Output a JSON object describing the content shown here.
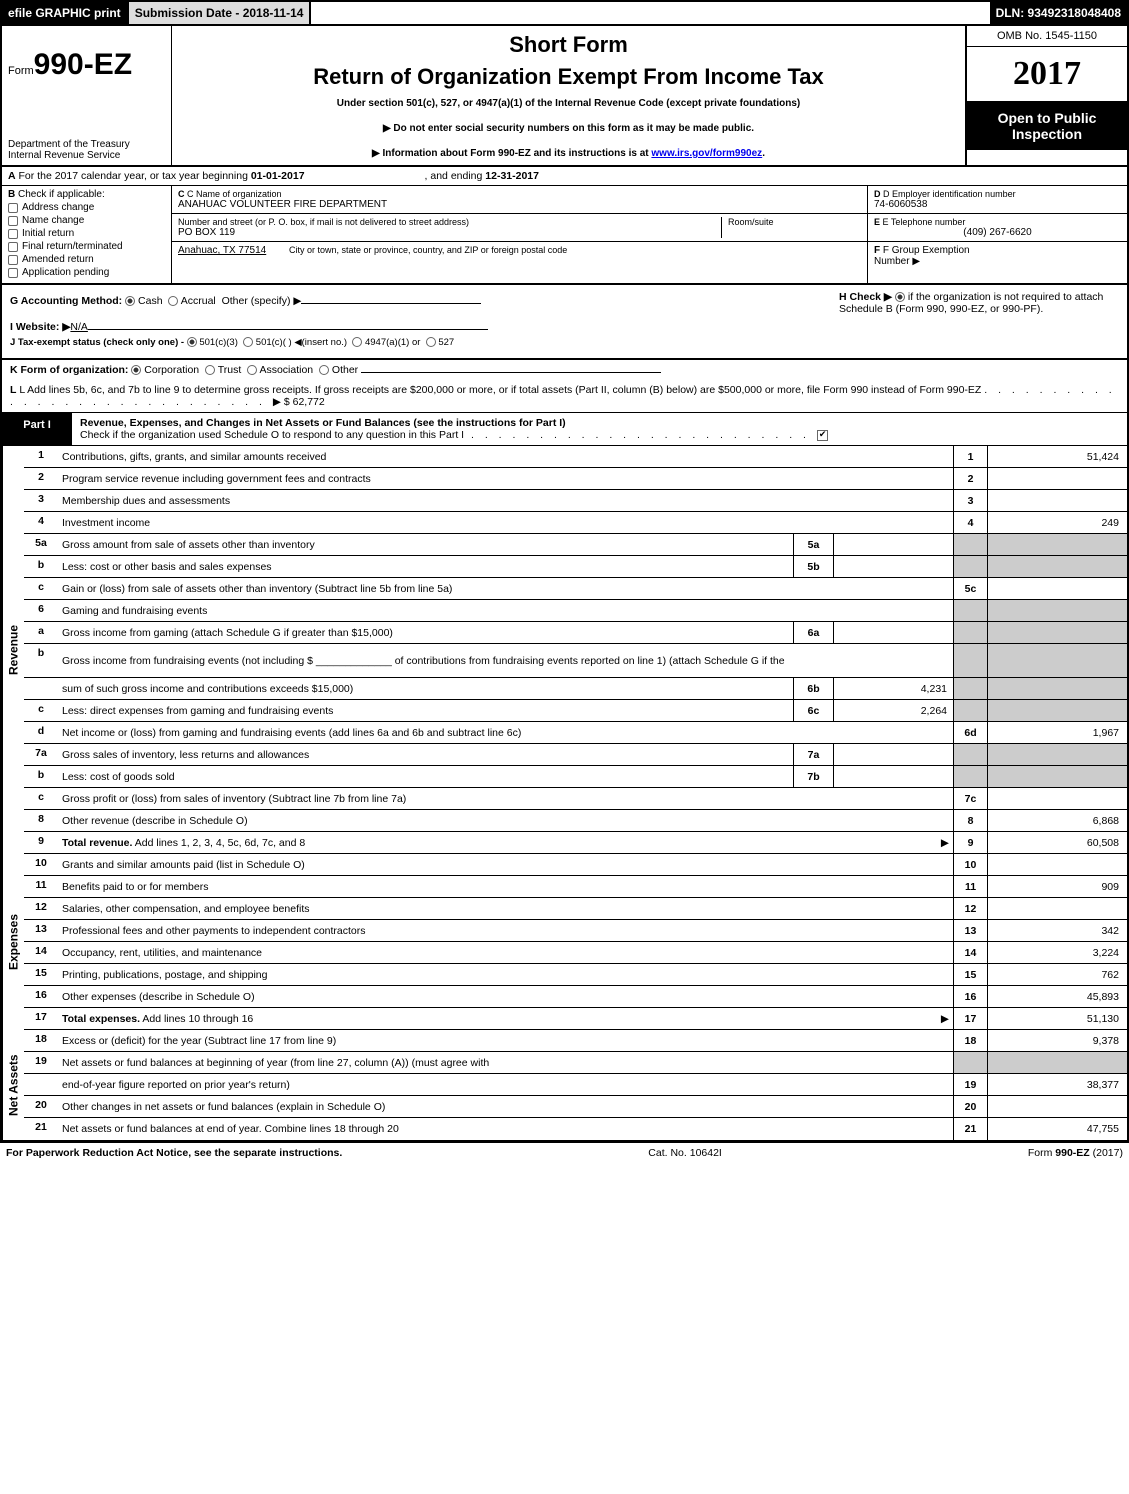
{
  "top": {
    "efile": "efile GRAPHIC print",
    "submission": "Submission Date - 2018-11-14",
    "dln": "DLN: 93492318048408"
  },
  "header": {
    "form_prefix": "Form",
    "form_number": "990-EZ",
    "dept1": "Department of the Treasury",
    "dept2": "Internal Revenue Service",
    "short": "Short Form",
    "title": "Return of Organization Exempt From Income Tax",
    "subtitle": "Under section 501(c), 527, or 4947(a)(1) of the Internal Revenue Code (except private foundations)",
    "note1": "▶ Do not enter social security numbers on this form as it may be made public.",
    "note2_pre": "▶ Information about Form 990-EZ and its instructions is at ",
    "note2_link": "www.irs.gov/form990ez",
    "note2_post": ".",
    "omb": "OMB No. 1545-1150",
    "year": "2017",
    "inspect1": "Open to Public",
    "inspect2": "Inspection"
  },
  "line_a": {
    "text_pre": "For the 2017 calendar year, or tax year beginning ",
    "begin": "01-01-2017",
    "mid": ", and ending ",
    "end": "12-31-2017"
  },
  "box_b": {
    "header": "Check if applicable:",
    "items": [
      "Address change",
      "Name change",
      "Initial return",
      "Final return/terminated",
      "Amended return",
      "Application pending"
    ]
  },
  "box_c": {
    "label": "C Name of organization",
    "org": "ANAHUAC VOLUNTEER FIRE DEPARTMENT",
    "street_label": "Number and street (or P. O. box, if mail is not delivered to street address)",
    "street": "PO BOX 119",
    "room_label": "Room/suite",
    "city_label": "City or town, state or province, country, and ZIP or foreign postal code",
    "city": "Anahuac, TX  77514"
  },
  "box_d": {
    "label": "D Employer identification number",
    "val": "74-6060538"
  },
  "box_e": {
    "label": "E Telephone number",
    "val": "(409) 267-6620"
  },
  "box_f": {
    "label": "F Group Exemption",
    "label2": "Number",
    "arrow": "▶"
  },
  "box_g": {
    "acct": "G Accounting Method:",
    "opts": [
      "Cash",
      "Accrual",
      "Other (specify) ▶"
    ],
    "website_label": "I Website: ▶",
    "website": "N/A",
    "j": "J Tax-exempt status (check only one) -",
    "j_opts": [
      "501(c)(3)",
      "501(c)(   ) ◀(insert no.)",
      "4947(a)(1) or",
      "527"
    ]
  },
  "box_h": {
    "pre": "H   Check ▶",
    "post": "if the organization is not required to attach Schedule B (Form 990, 990-EZ, or 990-PF)."
  },
  "line_k": "K Form of organization:",
  "k_opts": [
    "Corporation",
    "Trust",
    "Association",
    "Other"
  ],
  "line_l": {
    "text": "L Add lines 5b, 6c, and 7b to line 9 to determine gross receipts. If gross receipts are $200,000 or more, or if total assets (Part II, column (B) below) are $500,000 or more, file Form 990 instead of Form 990-EZ",
    "amount": "▶ $ 62,772"
  },
  "part1": {
    "label": "Part I",
    "title": "Revenue, Expenses, and Changes in Net Assets or Fund Balances (see the instructions for Part I)",
    "check": "Check if the organization used Schedule O to respond to any question in this Part I"
  },
  "sections": [
    {
      "vlabel": "Revenue",
      "rows": [
        {
          "num": "1",
          "desc": "Contributions, gifts, grants, and similar amounts received",
          "line": "1",
          "amount": "51,424"
        },
        {
          "num": "2",
          "desc": "Program service revenue including government fees and contracts",
          "line": "2",
          "amount": ""
        },
        {
          "num": "3",
          "desc": "Membership dues and assessments",
          "line": "3",
          "amount": ""
        },
        {
          "num": "4",
          "desc": "Investment income",
          "line": "4",
          "amount": "249"
        },
        {
          "num": "5a",
          "desc": "Gross amount from sale of assets other than inventory",
          "sub_box": "5a",
          "sub_val": "",
          "shade_right": true
        },
        {
          "num": "b",
          "desc": "Less: cost or other basis and sales expenses",
          "sub_box": "5b",
          "sub_val": "",
          "shade_right": true
        },
        {
          "num": "c",
          "desc": "Gain or (loss) from sale of assets other than inventory (Subtract line 5b from line 5a)",
          "line": "5c",
          "amount": ""
        },
        {
          "num": "6",
          "desc": "Gaming and fundraising events",
          "shade_right": true,
          "no_line": true
        },
        {
          "num": "a",
          "desc": "Gross income from gaming (attach Schedule G if greater than $15,000)",
          "sub_box": "6a",
          "sub_val": "",
          "shade_right": true
        },
        {
          "num": "b",
          "desc": "Gross income from fundraising events (not including $ _____________ of contributions from fundraising events reported on line 1) (attach Schedule G if the",
          "shade_right": true,
          "no_line": true,
          "tall": true
        },
        {
          "num": "",
          "desc": "sum of such gross income and contributions exceeds $15,000)",
          "sub_box": "6b",
          "sub_val": "4,231",
          "shade_right": true
        },
        {
          "num": "c",
          "desc": "Less: direct expenses from gaming and fundraising events",
          "sub_box": "6c",
          "sub_val": "2,264",
          "shade_right": true
        },
        {
          "num": "d",
          "desc": "Net income or (loss) from gaming and fundraising events (add lines 6a and 6b and subtract line 6c)",
          "line": "6d",
          "amount": "1,967"
        },
        {
          "num": "7a",
          "desc": "Gross sales of inventory, less returns and allowances",
          "sub_box": "7a",
          "sub_val": "",
          "shade_right": true
        },
        {
          "num": "b",
          "desc": "Less: cost of goods sold",
          "sub_box": "7b",
          "sub_val": "",
          "shade_right": true
        },
        {
          "num": "c",
          "desc": "Gross profit or (loss) from sales of inventory (Subtract line 7b from line 7a)",
          "line": "7c",
          "amount": ""
        },
        {
          "num": "8",
          "desc": "Other revenue (describe in Schedule O)",
          "line": "8",
          "amount": "6,868"
        },
        {
          "num": "9",
          "desc": "Total revenue. Add lines 1, 2, 3, 4, 5c, 6d, 7c, and 8",
          "line": "9",
          "amount": "60,508",
          "bold": true,
          "arrow": true
        }
      ]
    },
    {
      "vlabel": "Expenses",
      "rows": [
        {
          "num": "10",
          "desc": "Grants and similar amounts paid (list in Schedule O)",
          "line": "10",
          "amount": ""
        },
        {
          "num": "11",
          "desc": "Benefits paid to or for members",
          "line": "11",
          "amount": "909"
        },
        {
          "num": "12",
          "desc": "Salaries, other compensation, and employee benefits",
          "line": "12",
          "amount": ""
        },
        {
          "num": "13",
          "desc": "Professional fees and other payments to independent contractors",
          "line": "13",
          "amount": "342"
        },
        {
          "num": "14",
          "desc": "Occupancy, rent, utilities, and maintenance",
          "line": "14",
          "amount": "3,224"
        },
        {
          "num": "15",
          "desc": "Printing, publications, postage, and shipping",
          "line": "15",
          "amount": "762"
        },
        {
          "num": "16",
          "desc": "Other expenses (describe in Schedule O)",
          "line": "16",
          "amount": "45,893"
        },
        {
          "num": "17",
          "desc": "Total expenses. Add lines 10 through 16",
          "line": "17",
          "amount": "51,130",
          "bold": true,
          "arrow": true
        }
      ]
    },
    {
      "vlabel": "Net Assets",
      "rows": [
        {
          "num": "18",
          "desc": "Excess or (deficit) for the year (Subtract line 17 from line 9)",
          "line": "18",
          "amount": "9,378"
        },
        {
          "num": "19",
          "desc": "Net assets or fund balances at beginning of year (from line 27, column (A)) (must agree with",
          "shade_right": true,
          "no_line": true
        },
        {
          "num": "",
          "desc": "end-of-year figure reported on prior year's return)",
          "line": "19",
          "amount": "38,377"
        },
        {
          "num": "20",
          "desc": "Other changes in net assets or fund balances (explain in Schedule O)",
          "line": "20",
          "amount": ""
        },
        {
          "num": "21",
          "desc": "Net assets or fund balances at end of year. Combine lines 18 through 20",
          "line": "21",
          "amount": "47,755",
          "last": true
        }
      ]
    }
  ],
  "footer": {
    "left": "For Paperwork Reduction Act Notice, see the separate instructions.",
    "mid": "Cat. No. 10642I",
    "right_pre": "Form ",
    "right_bold": "990-EZ",
    "right_post": " (2017)"
  },
  "colors": {
    "shade": "#cccccc",
    "black": "#000000",
    "link": "#0000ee"
  }
}
